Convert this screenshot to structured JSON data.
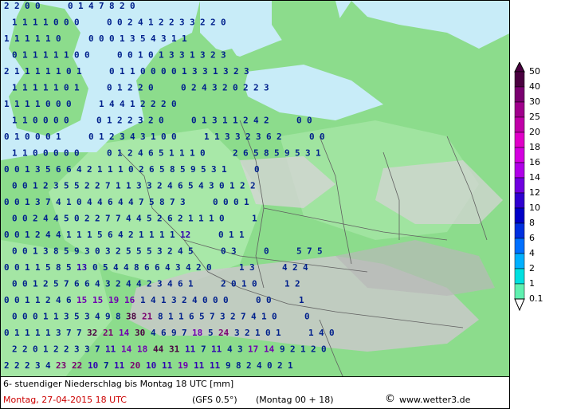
{
  "map": {
    "title_line": "6- stuendiger Niederschlag bis Montag 18 UTC [mm]",
    "date_line": "Montag, 27-04-2015  18 UTC",
    "model": "(GFS 0.5°)",
    "run": "(Montag 00 + 18)",
    "credit": "www.wetter3.de",
    "copyright_symbol": "©"
  },
  "legend": {
    "labels": [
      "50",
      "40",
      "30",
      "25",
      "20",
      "18",
      "16",
      "14",
      "12",
      "10",
      "8",
      "6",
      "4",
      "2",
      "1",
      "0.1"
    ],
    "colors": [
      "#4a0040",
      "#7a0070",
      "#a0008c",
      "#c000a8",
      "#e000c8",
      "#d400e0",
      "#b000e8",
      "#7000e0",
      "#3000d0",
      "#0000c8",
      "#0030e0",
      "#0070ff",
      "#00b0ff",
      "#00e0e0",
      "#60f0b0",
      "#ffffff"
    ]
  },
  "grid_values": [
    [
      "2 2 0 0",
      "0 1 4 7 8 2 0"
    ],
    [
      "1 1 1 1 0 0 0",
      "0 0 2 4 1 2 2 3 3 2 2 0"
    ],
    [
      "1 1 1 1 1 0",
      "0 0 0 1 3 5 4 3 1 1"
    ],
    [
      "0 1 1 1 1 1 0 0",
      "0 0 1 0 1 3 3 1 3 2 3"
    ],
    [
      "2 1 1 1 1 1 0 1",
      "0 1 1 0 0 0 0 1 3 3 1 3 2 3"
    ],
    [
      "1 1 1 1 1 0 1",
      "0 1 2 2 0",
      "0 2 4 3 2 0 2 2 3"
    ],
    [
      "1 1 1 1 0 0 0",
      "1 4 4 1 2 2 2 0"
    ],
    [
      "1 1 0 0 0 0",
      "0 1 2 2 3 2 0",
      "0 1 3 1 1 2 4 2",
      "0 0"
    ],
    [
      "0 1 0 0 0 1",
      "0 1 2 3 4 3 1 0 0",
      "1 1 3 3 2 3 6 2",
      "0 0"
    ],
    [
      "1 1 0 0 0 0 0",
      "0 1 2 4 6 5 1 1 1 0",
      "2 6 5 8 5 9 5 3 1"
    ],
    [
      "0 0 1 3 5 6 6 4 2 1 1 1 0 2 6 5 8 5 9 5 3 1",
      "0"
    ],
    [
      "0 0 1 2 3 5 5 2 2 7 1 1 3 3 2 4 6 5 4 3 0 1 2 2"
    ],
    [
      "0 0 1 3 7 4 1 0 4 4 6 4 4 7 5 8 7 3",
      "0 0 0 1"
    ],
    [
      "0 0 2 4 4 5 0 2 2 7 7 4 4 5 2 6 2 1 1 1 0",
      "1"
    ],
    [
      "0 0 1 2 4 4 1 1 1 5 6 4 2 1 1 1 1 12",
      "0 1 1"
    ],
    [
      "0 0 1 3 8 5 9 3 0 3 2 5 5 5 3 2 4 5",
      "0 3",
      "0",
      "5 7 5"
    ],
    [
      "0 0 1 1 5 8 5 13 0 5 4 4 8 6 6 4 3 4 2 0",
      "1 3",
      "4 2 4"
    ],
    [
      "0 0 1 2 5 7 6 6 4 3 2 4 4 2 3 4 6 1",
      "2 0 1 0",
      "1 2"
    ],
    [
      "0 0 1 1 2 4 6 15 15 19 16 1 4 1 3 2 4 0 0 0",
      "0 0",
      "1"
    ],
    [
      "0 0 0 1 1 3 5 3 4 9 8 38 21 8 1 1 6 5 7 3 2 7 4 1 0",
      "0"
    ],
    [
      "0 1 1 1 1 3 7 7 32 21 14 30 4 6 9 7 18 5 24 3 2 1 0 1",
      "1 4 0"
    ],
    [
      "2 2 0 1 2 2 3 3 7 11 14 18 44 31 11 7 11 4 3 17 14 9 2 1 2 0"
    ],
    [
      "2 2 2 3 4 23 22 10 7 11 20 10 11 19 11 11 9 8 2 4 0 2 1"
    ]
  ]
}
